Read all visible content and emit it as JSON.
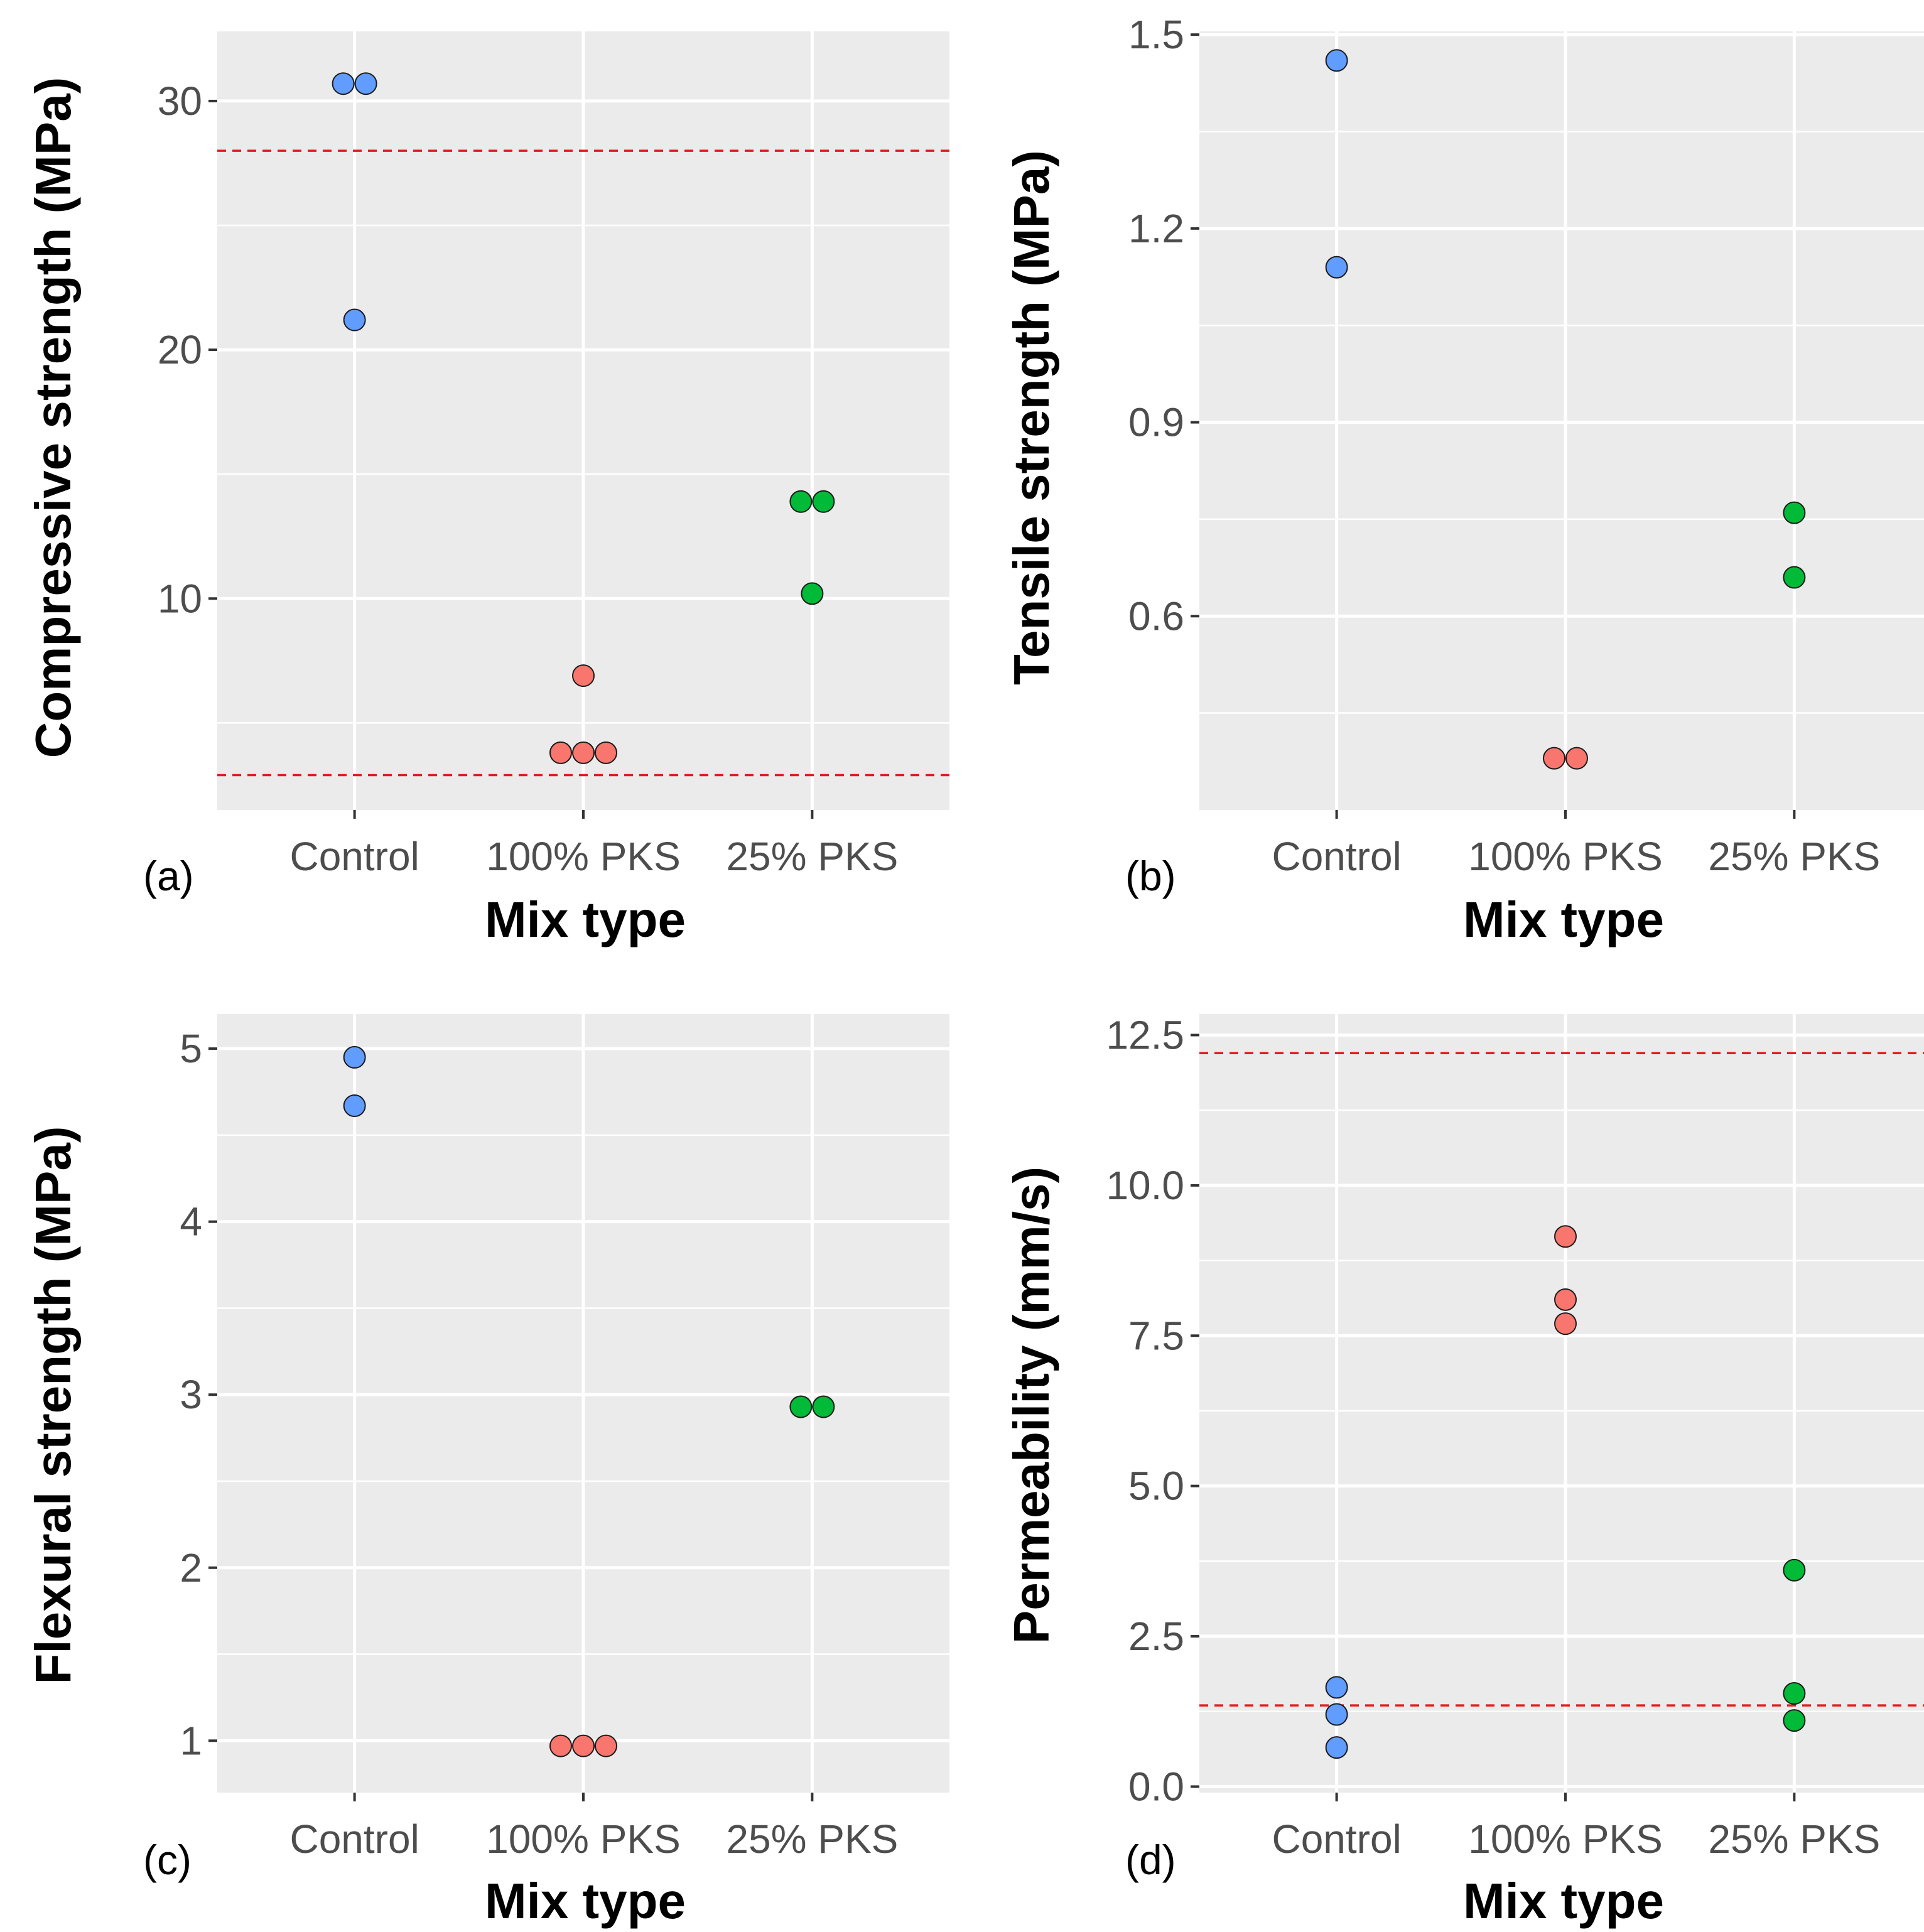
{
  "colors": {
    "panel_bg": "#ebebeb",
    "grid_major": "#ffffff",
    "grid_minor": "#ffffff",
    "tick": "#333333",
    "reference_line": "#e41a1c",
    "Control": "#619cff",
    "100% PKS": "#f8766d",
    "25% PKS": "#00ba38"
  },
  "chart_data": [
    {
      "id": "a",
      "panel_label": "(a)",
      "type": "scatter",
      "title": "",
      "xlabel": "Mix type",
      "ylabel": "Compressive strength (MPa)",
      "categories": [
        "Control",
        "100% PKS",
        "25% PKS"
      ],
      "ylim": [
        1.5,
        32.8
      ],
      "yticks": [
        10,
        20,
        30
      ],
      "ytick_labels": [
        "10",
        "20",
        "30"
      ],
      "grid": true,
      "reference_lines": [
        28.0,
        2.9
      ],
      "points": [
        {
          "category": "Control",
          "value": 30.7,
          "offset": -1
        },
        {
          "category": "Control",
          "value": 30.7,
          "offset": 1
        },
        {
          "category": "Control",
          "value": 21.2,
          "offset": 0
        },
        {
          "category": "100% PKS",
          "value": 6.9,
          "offset": 0
        },
        {
          "category": "100% PKS",
          "value": 3.8,
          "offset": -2
        },
        {
          "category": "100% PKS",
          "value": 3.8,
          "offset": 0
        },
        {
          "category": "100% PKS",
          "value": 3.8,
          "offset": 2
        },
        {
          "category": "25% PKS",
          "value": 13.9,
          "offset": -1
        },
        {
          "category": "25% PKS",
          "value": 13.9,
          "offset": 1
        },
        {
          "category": "25% PKS",
          "value": 10.2,
          "offset": 0
        }
      ]
    },
    {
      "id": "b",
      "panel_label": "(b)",
      "type": "scatter",
      "title": "",
      "xlabel": "Mix type",
      "ylabel": "Tensile strength (MPa)",
      "categories": [
        "Control",
        "100% PKS",
        "25% PKS"
      ],
      "ylim": [
        0.3,
        1.505
      ],
      "yticks": [
        0.6,
        0.9,
        1.2,
        1.5
      ],
      "ytick_labels": [
        "0.6",
        "0.9",
        "1.2",
        "1.5"
      ],
      "grid": true,
      "reference_lines": [],
      "points": [
        {
          "category": "Control",
          "value": 1.46,
          "offset": 0
        },
        {
          "category": "Control",
          "value": 1.14,
          "offset": 0
        },
        {
          "category": "100% PKS",
          "value": 0.38,
          "offset": -1
        },
        {
          "category": "100% PKS",
          "value": 0.38,
          "offset": 1
        },
        {
          "category": "25% PKS",
          "value": 0.76,
          "offset": 0
        },
        {
          "category": "25% PKS",
          "value": 0.66,
          "offset": 0
        }
      ]
    },
    {
      "id": "c",
      "panel_label": "(c)",
      "type": "scatter",
      "title": "",
      "xlabel": "Mix type",
      "ylabel": "Flexural strength (MPa)",
      "categories": [
        "Control",
        "100% PKS",
        "25% PKS"
      ],
      "ylim": [
        0.7,
        5.2
      ],
      "yticks": [
        1,
        2,
        3,
        4,
        5
      ],
      "ytick_labels": [
        "1",
        "2",
        "3",
        "4",
        "5"
      ],
      "grid": true,
      "reference_lines": [],
      "points": [
        {
          "category": "Control",
          "value": 4.95,
          "offset": 0
        },
        {
          "category": "Control",
          "value": 4.67,
          "offset": 0
        },
        {
          "category": "100% PKS",
          "value": 0.97,
          "offset": -2
        },
        {
          "category": "100% PKS",
          "value": 0.97,
          "offset": 0
        },
        {
          "category": "100% PKS",
          "value": 0.97,
          "offset": 2
        },
        {
          "category": "25% PKS",
          "value": 2.93,
          "offset": -1
        },
        {
          "category": "25% PKS",
          "value": 2.93,
          "offset": 1
        }
      ]
    },
    {
      "id": "d",
      "panel_label": "(d)",
      "type": "scatter",
      "title": "",
      "xlabel": "Mix type",
      "ylabel": "Permeability (mm/s)",
      "categories": [
        "Control",
        "100% PKS",
        "25% PKS"
      ],
      "ylim": [
        -0.1,
        12.85
      ],
      "yticks": [
        0.0,
        2.5,
        5.0,
        7.5,
        10.0,
        12.5
      ],
      "ytick_labels": [
        "0.0",
        "2.5",
        "5.0",
        "7.5",
        "10.0",
        "12.5"
      ],
      "grid": true,
      "reference_lines": [
        12.2,
        1.35
      ],
      "points": [
        {
          "category": "Control",
          "value": 1.65,
          "offset": 0
        },
        {
          "category": "Control",
          "value": 1.2,
          "offset": 0
        },
        {
          "category": "Control",
          "value": 0.65,
          "offset": 0
        },
        {
          "category": "100% PKS",
          "value": 9.15,
          "offset": 0
        },
        {
          "category": "100% PKS",
          "value": 8.1,
          "offset": 0
        },
        {
          "category": "100% PKS",
          "value": 7.7,
          "offset": 0
        },
        {
          "category": "25% PKS",
          "value": 3.6,
          "offset": 0
        },
        {
          "category": "25% PKS",
          "value": 1.55,
          "offset": 0
        },
        {
          "category": "25% PKS",
          "value": 1.1,
          "offset": 0
        }
      ]
    }
  ]
}
